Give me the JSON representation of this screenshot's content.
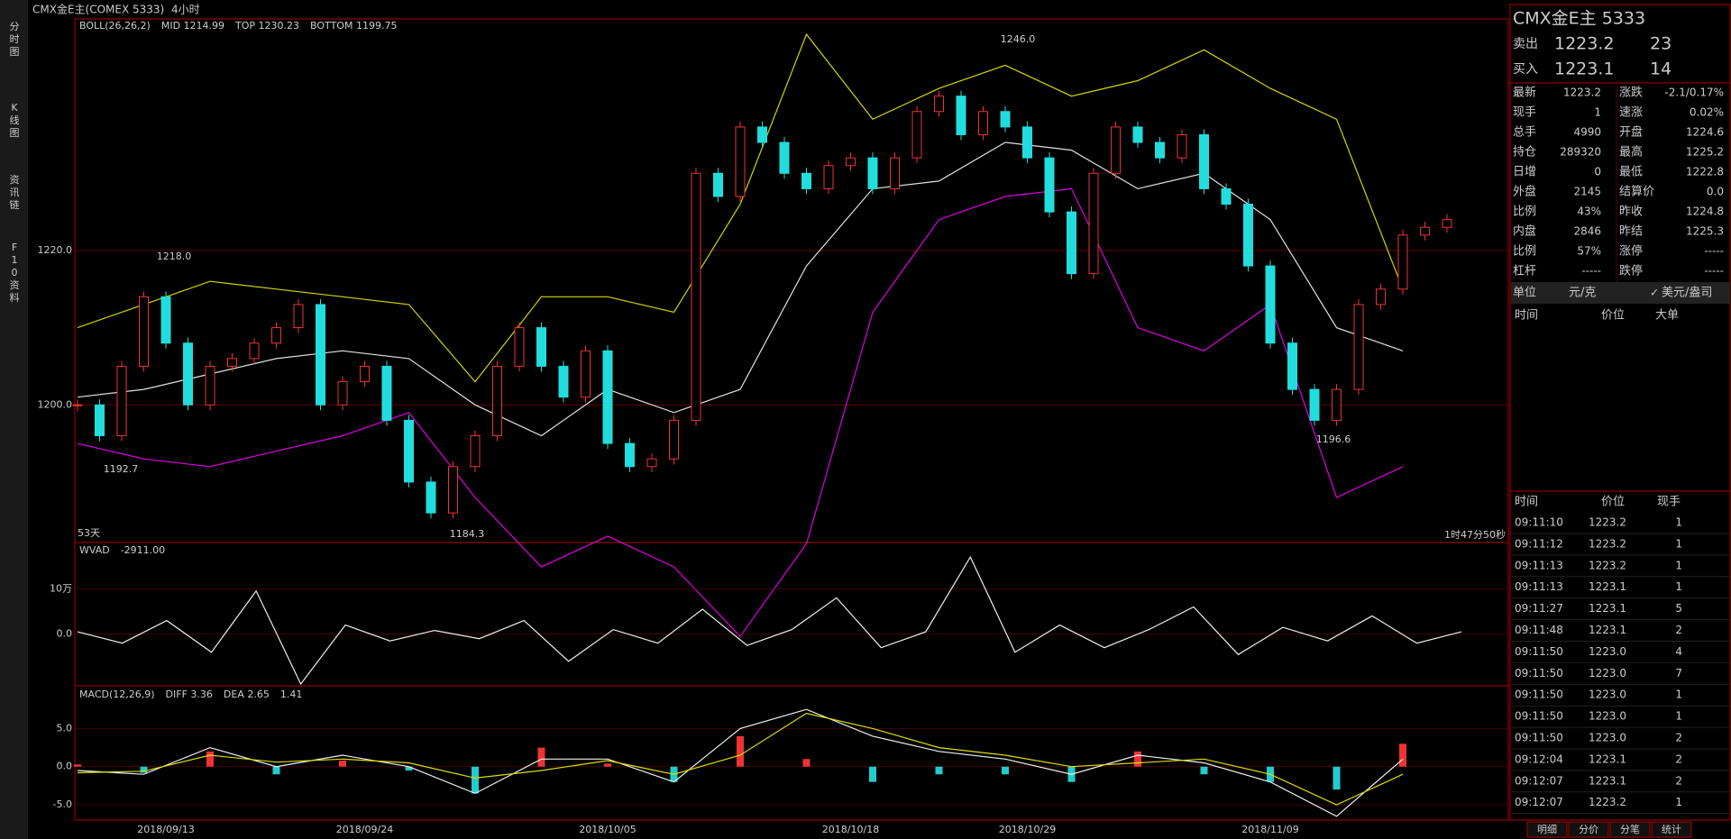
{
  "topbar": {
    "symbol": "CMX金E主(COMEX 5333)",
    "period": "4小时"
  },
  "tabs": [
    "分时图",
    "K线图",
    "资讯链",
    "F10资料"
  ],
  "kline": {
    "legend": [
      "BOLL(26,26,2)",
      "MID 1214.99",
      "TOP 1230.23",
      "BOTTOM 1199.75"
    ],
    "ylim": [
      1182.4,
      1250
    ],
    "yticks": [
      {
        "value": 1200,
        "label": "1200.0"
      },
      {
        "value": 1220,
        "label": "1220.0"
      }
    ],
    "closes": [
      1200,
      1196,
      1205,
      1214,
      1208,
      1200,
      1205,
      1206,
      1208,
      1210,
      1213,
      1200,
      1203,
      1205,
      1198,
      1190,
      1186,
      1192,
      1196,
      1205,
      1210,
      1205,
      1201,
      1207,
      1195,
      1192,
      1193,
      1198,
      1230,
      1227,
      1236,
      1234,
      1230,
      1228,
      1231,
      1232,
      1228,
      1232,
      1238,
      1240,
      1235,
      1238,
      1236,
      1232,
      1225,
      1217,
      1230,
      1236,
      1234,
      1232,
      1235,
      1228,
      1226,
      1218,
      1208,
      1202,
      1198,
      1202,
      1213,
      1215,
      1222,
      1223,
      1224
    ],
    "categories": [
      null,
      null,
      null,
      null,
      "2018/09/13",
      null,
      null,
      null,
      null,
      null,
      null,
      null,
      null,
      "2018/09/24",
      null,
      null,
      null,
      null,
      null,
      null,
      null,
      null,
      null,
      null,
      "2018/10/05",
      null,
      null,
      null,
      null,
      null,
      null,
      null,
      null,
      null,
      null,
      "2018/10/18",
      null,
      null,
      null,
      null,
      null,
      null,
      null,
      "2018/10/29",
      null,
      null,
      null,
      null,
      null,
      null,
      null,
      null,
      null,
      null,
      "2018/11/09",
      null,
      null,
      null,
      null,
      null,
      null,
      null,
      null
    ],
    "boll": [
      {
        "name": "MID",
        "color": "#e0e0e0",
        "values": [
          1201,
          1202,
          1204,
          1206,
          1207,
          1206,
          1200,
          1196,
          1202,
          1199,
          1202,
          1218,
          1228,
          1229,
          1234,
          1233,
          1228,
          1230,
          1224,
          1210,
          1207
        ]
      },
      {
        "name": "TOP",
        "color": "#d4d400",
        "values": [
          1210,
          1213,
          1216,
          1215,
          1214,
          1213,
          1203,
          1214,
          1214,
          1212,
          1226,
          1248,
          1237,
          1241,
          1244,
          1240,
          1242,
          1246,
          1241,
          1237,
          1215
        ]
      },
      {
        "name": "BOTTOM",
        "color": "#e000e0",
        "values": [
          1195,
          1193,
          1192,
          1194,
          1196,
          1199,
          1188,
          1179,
          1183,
          1179,
          1170,
          1182,
          1212,
          1224,
          1227,
          1228,
          1210,
          1207,
          1213,
          1188,
          1192
        ]
      }
    ],
    "annotations": [
      "1218.0",
      "1192.7",
      "1184.3",
      "1246.0",
      "1196.6"
    ],
    "days": "53天",
    "countdown": "1时47分50秒"
  },
  "wvad": {
    "legend": [
      "WVAD",
      "-2911.00"
    ],
    "ylim": [
      -110000,
      202000
    ],
    "yticks": [
      {
        "value": 0,
        "label": "0.0"
      },
      {
        "value": 100000,
        "label": "10万"
      }
    ],
    "values": [
      5000,
      -20000,
      30000,
      -40000,
      95000,
      -110000,
      20000,
      -15000,
      8000,
      -10000,
      30000,
      -60000,
      10000,
      -20000,
      55000,
      -25000,
      10000,
      80000,
      -30000,
      5000,
      170000,
      -40000,
      20000,
      -30000,
      10000,
      60000,
      -45000,
      15000,
      -15000,
      40000,
      -20000,
      5000
    ]
  },
  "macd": {
    "legend": [
      "MACD(12,26,9)",
      "DIFF 3.36",
      "DEA 2.65",
      "1.41"
    ],
    "ylim": [
      -7,
      10.6
    ],
    "yticks": [
      {
        "value": -5,
        "label": "-5.0"
      },
      {
        "value": 0,
        "label": "0.0"
      },
      {
        "value": 5,
        "label": "5.0"
      }
    ],
    "diff": [
      -0.5,
      -1,
      2.5,
      0,
      1.5,
      0,
      -3.5,
      1,
      1,
      -2,
      5,
      7.5,
      4,
      2,
      1,
      -1,
      1.5,
      0.5,
      -2,
      -6.5,
      1
    ],
    "dea": [
      -0.8,
      -0.6,
      1.5,
      0.6,
      1,
      0.5,
      -1.5,
      -0.5,
      0.8,
      -1,
      1.5,
      7,
      5,
      2.5,
      1.5,
      0,
      0.5,
      1,
      -1,
      -5,
      -1
    ],
    "hist": [
      0.3,
      -0.8,
      2,
      -1,
      0.8,
      -0.5,
      -3.5,
      2.5,
      0.4,
      -2,
      4,
      1,
      -2,
      -1,
      -1,
      -2,
      2,
      -1,
      -2,
      -3,
      3
    ]
  },
  "quote": {
    "title": "CMX金E主  5333",
    "ask": [
      "卖出",
      "1223.2",
      "23"
    ],
    "bid": [
      "买入",
      "1223.1",
      "14"
    ],
    "left": [
      {
        "k": "最新",
        "v": "1223.2",
        "color": "#3f3"
      },
      {
        "k": "现手",
        "v": "1",
        "color": "#ff3"
      },
      {
        "k": "总手",
        "v": "4990",
        "color": "#ff3"
      },
      {
        "k": "持仓",
        "v": "289320",
        "color": "#ff3"
      },
      {
        "k": "日增",
        "v": "0",
        "color": "#ff3"
      },
      {
        "k": "外盘",
        "v": "2145",
        "color": "#ff3"
      },
      {
        "k": "比例",
        "v": "43%",
        "color": "#ff3"
      },
      {
        "k": "内盘",
        "v": "2846",
        "color": "#ff3"
      },
      {
        "k": "比例",
        "v": "57%",
        "color": "#ff3"
      },
      {
        "k": "杠杆",
        "v": "-----",
        "color": "#ff3"
      }
    ],
    "right": [
      {
        "k": "涨跌",
        "v": "-2.1/0.17%",
        "color": "#3f3"
      },
      {
        "k": "速涨",
        "v": "0.02%",
        "color": "#f33"
      },
      {
        "k": "开盘",
        "v": "1224.6",
        "color": "#3f3"
      },
      {
        "k": "最高",
        "v": "1225.2",
        "color": "#3f3"
      },
      {
        "k": "最低",
        "v": "1222.8",
        "color": "#3f3"
      },
      {
        "k": "结算价",
        "v": "0.0",
        "color": "#ddd"
      },
      {
        "k": "昨收",
        "v": "1224.8",
        "color": "#ddd"
      },
      {
        "k": "昨结",
        "v": "1225.3",
        "color": "#ddd"
      },
      {
        "k": "涨停",
        "v": "-----",
        "color": "#f33"
      },
      {
        "k": "跌停",
        "v": "-----",
        "color": "#3f3"
      }
    ],
    "unit": [
      "单位",
      "元/克",
      "美元/盎司"
    ],
    "bigheader": [
      "时间",
      "价位",
      "大单"
    ]
  },
  "trades": {
    "header": [
      "时间",
      "价位",
      "现手"
    ],
    "rows": [
      [
        "09:11:10",
        "1223.2",
        "1",
        "#f33"
      ],
      [
        "09:11:12",
        "1223.2",
        "1",
        "#f33"
      ],
      [
        "09:11:13",
        "1223.2",
        "1",
        "#3f3"
      ],
      [
        "09:11:13",
        "1223.1",
        "1",
        "#3f3"
      ],
      [
        "09:11:27",
        "1223.1",
        "5",
        "#f33"
      ],
      [
        "09:11:48",
        "1223.1",
        "2",
        "#3f3"
      ],
      [
        "09:11:50",
        "1223.0",
        "4",
        "#3f3"
      ],
      [
        "09:11:50",
        "1223.0",
        "7",
        "#f33"
      ],
      [
        "09:11:50",
        "1223.0",
        "1",
        "#3f3"
      ],
      [
        "09:11:50",
        "1223.0",
        "1",
        "#3f3"
      ],
      [
        "09:11:50",
        "1223.0",
        "2",
        "#3f3"
      ],
      [
        "09:12:04",
        "1223.1",
        "2",
        "#f33"
      ],
      [
        "09:12:07",
        "1223.1",
        "2",
        "#f33"
      ],
      [
        "09:12:07",
        "1223.2",
        "1",
        "#f33"
      ]
    ],
    "tabs": [
      "明细",
      "分价",
      "分笔",
      "统计"
    ]
  }
}
